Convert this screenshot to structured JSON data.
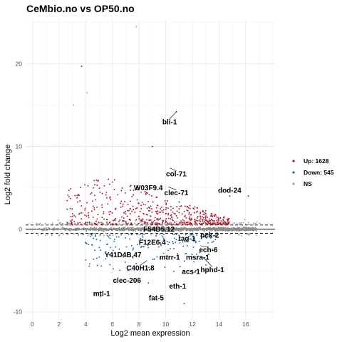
{
  "chart_data": {
    "type": "scatter",
    "title": "CeMbio.no vs OP50.no",
    "xlabel": "Log2 mean expression",
    "ylabel": "Log2 fold change",
    "xlim": [
      -0.5,
      18.2
    ],
    "ylim": [
      -10.8,
      25.3
    ],
    "x_ticks": [
      0,
      2,
      4,
      6,
      8,
      10,
      12,
      14,
      16
    ],
    "y_ticks": [
      -10,
      0,
      10,
      20
    ],
    "grid": true,
    "fold_change_threshold": 0.5,
    "legend_position": "right",
    "colors": {
      "up": "#b2182b",
      "down": "#2166ac",
      "ns": "#999999",
      "ns_dense": "#8c8c8c"
    },
    "series": [
      {
        "name": "Up: 1628",
        "category": "up",
        "count": 1628
      },
      {
        "name": "Down: 545",
        "category": "down",
        "count": 545
      },
      {
        "name": "NS",
        "category": "ns"
      }
    ],
    "highlight_points": [
      {
        "x": 7.8,
        "y": 24.5,
        "category": "ns"
      },
      {
        "x": 3.7,
        "y": 19.7,
        "category": "up"
      },
      {
        "x": 4.1,
        "y": 16.5,
        "category": "ns"
      },
      {
        "x": 3.1,
        "y": 15.0,
        "category": "ns"
      },
      {
        "x": 10.8,
        "y": 14.2,
        "category": "up"
      },
      {
        "x": 9.0,
        "y": 10.0,
        "category": "up"
      },
      {
        "x": 14.8,
        "y": 4.0,
        "category": "up"
      },
      {
        "x": 16.2,
        "y": 4.0,
        "category": "up"
      },
      {
        "x": 5.1,
        "y": -8.1,
        "category": "down"
      },
      {
        "x": 8.7,
        "y": -6.5,
        "category": "down"
      },
      {
        "x": 11.4,
        "y": -9.0,
        "category": "down"
      }
    ],
    "gene_labels": [
      {
        "label": "bli-1",
        "x": 10.3,
        "y": 13.0,
        "px": 10.8,
        "py": 14.2
      },
      {
        "label": "col-71",
        "x": 10.8,
        "y": 6.7,
        "px": 10.3,
        "py": 7.4
      },
      {
        "label": "W03F9.4",
        "x": 8.7,
        "y": 5.0,
        "px": 9.1,
        "py": 5.6
      },
      {
        "label": "clec-71",
        "x": 10.8,
        "y": 4.4,
        "px": 10.2,
        "py": 5.1
      },
      {
        "label": "dod-24",
        "x": 14.8,
        "y": 4.7,
        "px": 14.8,
        "py": 4.0
      },
      {
        "label": "F54D5.12",
        "x": 9.5,
        "y": 0.0,
        "px": 9.4,
        "py": 0.8
      },
      {
        "label": "pck-2",
        "x": 13.3,
        "y": -0.7,
        "px": 12.8,
        "py": -0.9
      },
      {
        "label": "F12E6.4",
        "x": 9.0,
        "y": -1.6,
        "px": 8.6,
        "py": -1.4
      },
      {
        "label": "tag-1",
        "x": 11.6,
        "y": -1.1,
        "px": 11.2,
        "py": -1.0
      },
      {
        "label": "ech-6",
        "x": 13.2,
        "y": -2.5,
        "px": 12.6,
        "py": -2.0
      },
      {
        "label": "Y41D4B.47",
        "x": 6.8,
        "y": -3.1,
        "px": 7.0,
        "py": -2.5
      },
      {
        "label": "mtrr-1",
        "x": 10.3,
        "y": -3.4,
        "px": 10.6,
        "py": -2.7
      },
      {
        "label": "msra-1",
        "x": 12.4,
        "y": -3.4,
        "px": 12.7,
        "py": -3.0
      },
      {
        "label": "C40H1.8",
        "x": 8.1,
        "y": -4.7,
        "px": 8.6,
        "py": -3.8
      },
      {
        "label": "hphd-1",
        "x": 13.5,
        "y": -4.9,
        "px": 12.8,
        "py": -3.4
      },
      {
        "label": "acs-1",
        "x": 11.9,
        "y": -5.1,
        "px": 11.6,
        "py": -4.3
      },
      {
        "label": "clec-206",
        "x": 7.1,
        "y": -6.2,
        "px": 7.6,
        "py": -5.6
      },
      {
        "label": "eth-1",
        "x": 10.9,
        "y": -6.9,
        "px": 10.6,
        "py": -6.3
      },
      {
        "label": "mtl-1",
        "x": 5.2,
        "y": -7.8,
        "px": 5.6,
        "py": -7.2
      },
      {
        "label": "fat-5",
        "x": 9.3,
        "y": -8.3,
        "px": 9.0,
        "py": -7.6
      }
    ]
  }
}
